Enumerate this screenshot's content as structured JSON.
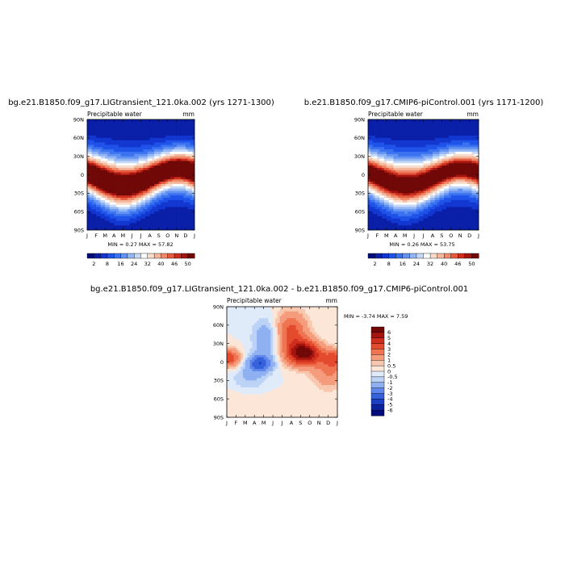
{
  "chart_data": [
    {
      "type": "heatmap",
      "title": "bg.e21.B1850.f09_g17.LIGtransient_121.0ka.002 (yrs 1271-1300)",
      "subtitle": "Precipitable water",
      "units": "mm",
      "x_tick_labels": [
        "J",
        "F",
        "M",
        "A",
        "M",
        "J",
        "J",
        "A",
        "S",
        "O",
        "N",
        "D",
        "J"
      ],
      "y_tick_labels": [
        "90N",
        "60N",
        "30N",
        "0",
        "30S",
        "60S",
        "90S"
      ],
      "ylim": [
        -90,
        90
      ],
      "stats_text": "MIN =   0.27 MAX =   57.82",
      "min": 0.27,
      "max": 57.82,
      "colorbar_labels": [
        "2",
        "8",
        "16",
        "24",
        "32",
        "40",
        "46",
        "50"
      ]
    },
    {
      "type": "heatmap",
      "title": "b.e21.B1850.f09_g17.CMIP6-piControl.001 (yrs 1171-1200)",
      "subtitle": "Precipitable water",
      "units": "mm",
      "x_tick_labels": [
        "J",
        "F",
        "M",
        "A",
        "M",
        "J",
        "J",
        "A",
        "S",
        "O",
        "N",
        "D",
        "J"
      ],
      "y_tick_labels": [
        "90N",
        "60N",
        "30N",
        "0",
        "30S",
        "60S",
        "90S"
      ],
      "ylim": [
        -90,
        90
      ],
      "stats_text": "MIN =   0.26 MAX =   53.75",
      "min": 0.26,
      "max": 53.75,
      "colorbar_labels": [
        "2",
        "8",
        "16",
        "24",
        "32",
        "40",
        "46",
        "50"
      ]
    },
    {
      "type": "heatmap",
      "title": "bg.e21.B1850.f09_g17.LIGtransient_121.0ka.002 - b.e21.B1850.f09_g17.CMIP6-piControl.001",
      "subtitle": "Precipitable water",
      "units": "mm",
      "x_tick_labels": [
        "J",
        "F",
        "M",
        "A",
        "M",
        "J",
        "J",
        "A",
        "S",
        "O",
        "N",
        "D",
        "J"
      ],
      "y_tick_labels": [
        "90N",
        "60N",
        "30N",
        "0",
        "30S",
        "60S",
        "90S"
      ],
      "ylim": [
        -90,
        90
      ],
      "stats_text": "MIN =   -3.74 MAX =    7.59",
      "min": -3.74,
      "max": 7.59,
      "colorbar_labels": [
        "6",
        "5",
        "4",
        "3",
        "2",
        "1",
        "0.5",
        "0",
        "-0.5",
        "-1",
        "-2",
        "-3",
        "-4",
        "-5",
        "-6"
      ]
    }
  ],
  "palettes": {
    "absolute": [
      "#000c7a",
      "#0a1fa8",
      "#1236d0",
      "#1f52e8",
      "#3a72f0",
      "#6393f2",
      "#94b6f4",
      "#c4d8f8",
      "#ffffff",
      "#f8dccb",
      "#f4b79b",
      "#ef8a6a",
      "#e65a3d",
      "#cf2e1d",
      "#a61410",
      "#700808"
    ],
    "difference": [
      "#700808",
      "#a61410",
      "#cf2e1d",
      "#e44a2d",
      "#ef7451",
      "#f49c7c",
      "#f8c7ad",
      "#fce6d8",
      "#e0ebfa",
      "#bcd3f6",
      "#8fb1f2",
      "#5f86ea",
      "#3561da",
      "#1b3fc4",
      "#0a229e",
      "#000c7a"
    ]
  }
}
